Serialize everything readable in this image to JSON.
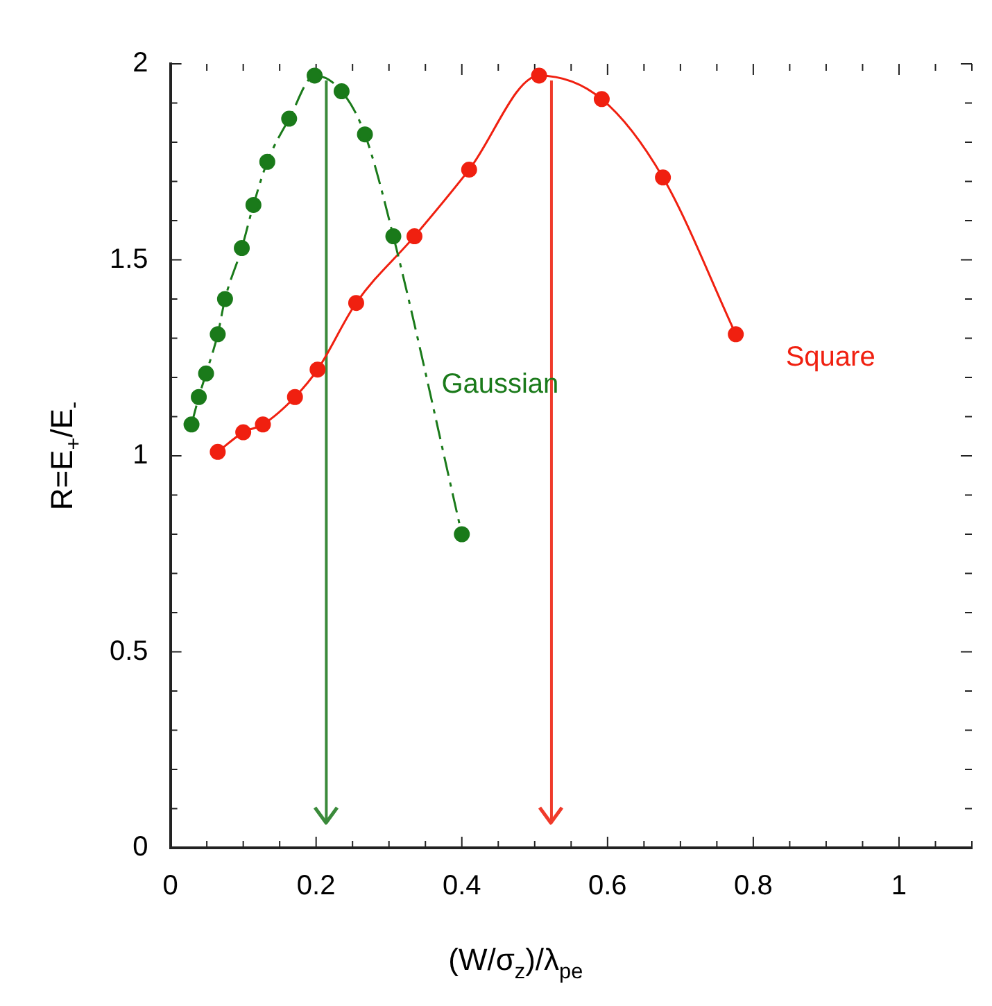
{
  "chart_data": {
    "type": "line",
    "xlabel": "(W/σ$_{z}$)/λ$_{pe}$",
    "ylabel": "R=E$_{+}$/E$_{-}$",
    "xlim": [
      0,
      1.1
    ],
    "xticks": [
      0,
      0.2,
      0.4,
      0.6,
      0.8,
      1
    ],
    "ylim": [
      0,
      2
    ],
    "yticks": [
      0,
      0.5,
      1,
      1.5,
      2
    ],
    "grid": false,
    "legend": false,
    "marker": "circle",
    "series": [
      {
        "name": "Gaussian",
        "color": "#1a7a1a",
        "line_style": "dashed",
        "x": [
          0.029,
          0.039,
          0.049,
          0.065,
          0.075,
          0.098,
          0.114,
          0.133,
          0.163,
          0.198,
          0.235,
          0.267,
          0.306,
          0.4
        ],
        "values": [
          1.08,
          1.15,
          1.21,
          1.31,
          1.4,
          1.53,
          1.64,
          1.75,
          1.86,
          1.97,
          1.93,
          1.82,
          1.56,
          0.8
        ]
      },
      {
        "name": "Square",
        "color": "#f02010",
        "line_style": "solid",
        "x": [
          0.065,
          0.1,
          0.127,
          0.171,
          0.202,
          0.255,
          0.335,
          0.41,
          0.506,
          0.592,
          0.676,
          0.776
        ],
        "values": [
          1.01,
          1.06,
          1.08,
          1.15,
          1.22,
          1.39,
          1.56,
          1.73,
          1.97,
          1.91,
          1.71,
          1.31
        ]
      }
    ],
    "ref_lines": [
      {
        "axis": "x",
        "value": 0.214,
        "color": "#3a8a3a"
      },
      {
        "axis": "x",
        "value": 0.523,
        "color": "#f03a2a"
      }
    ]
  }
}
